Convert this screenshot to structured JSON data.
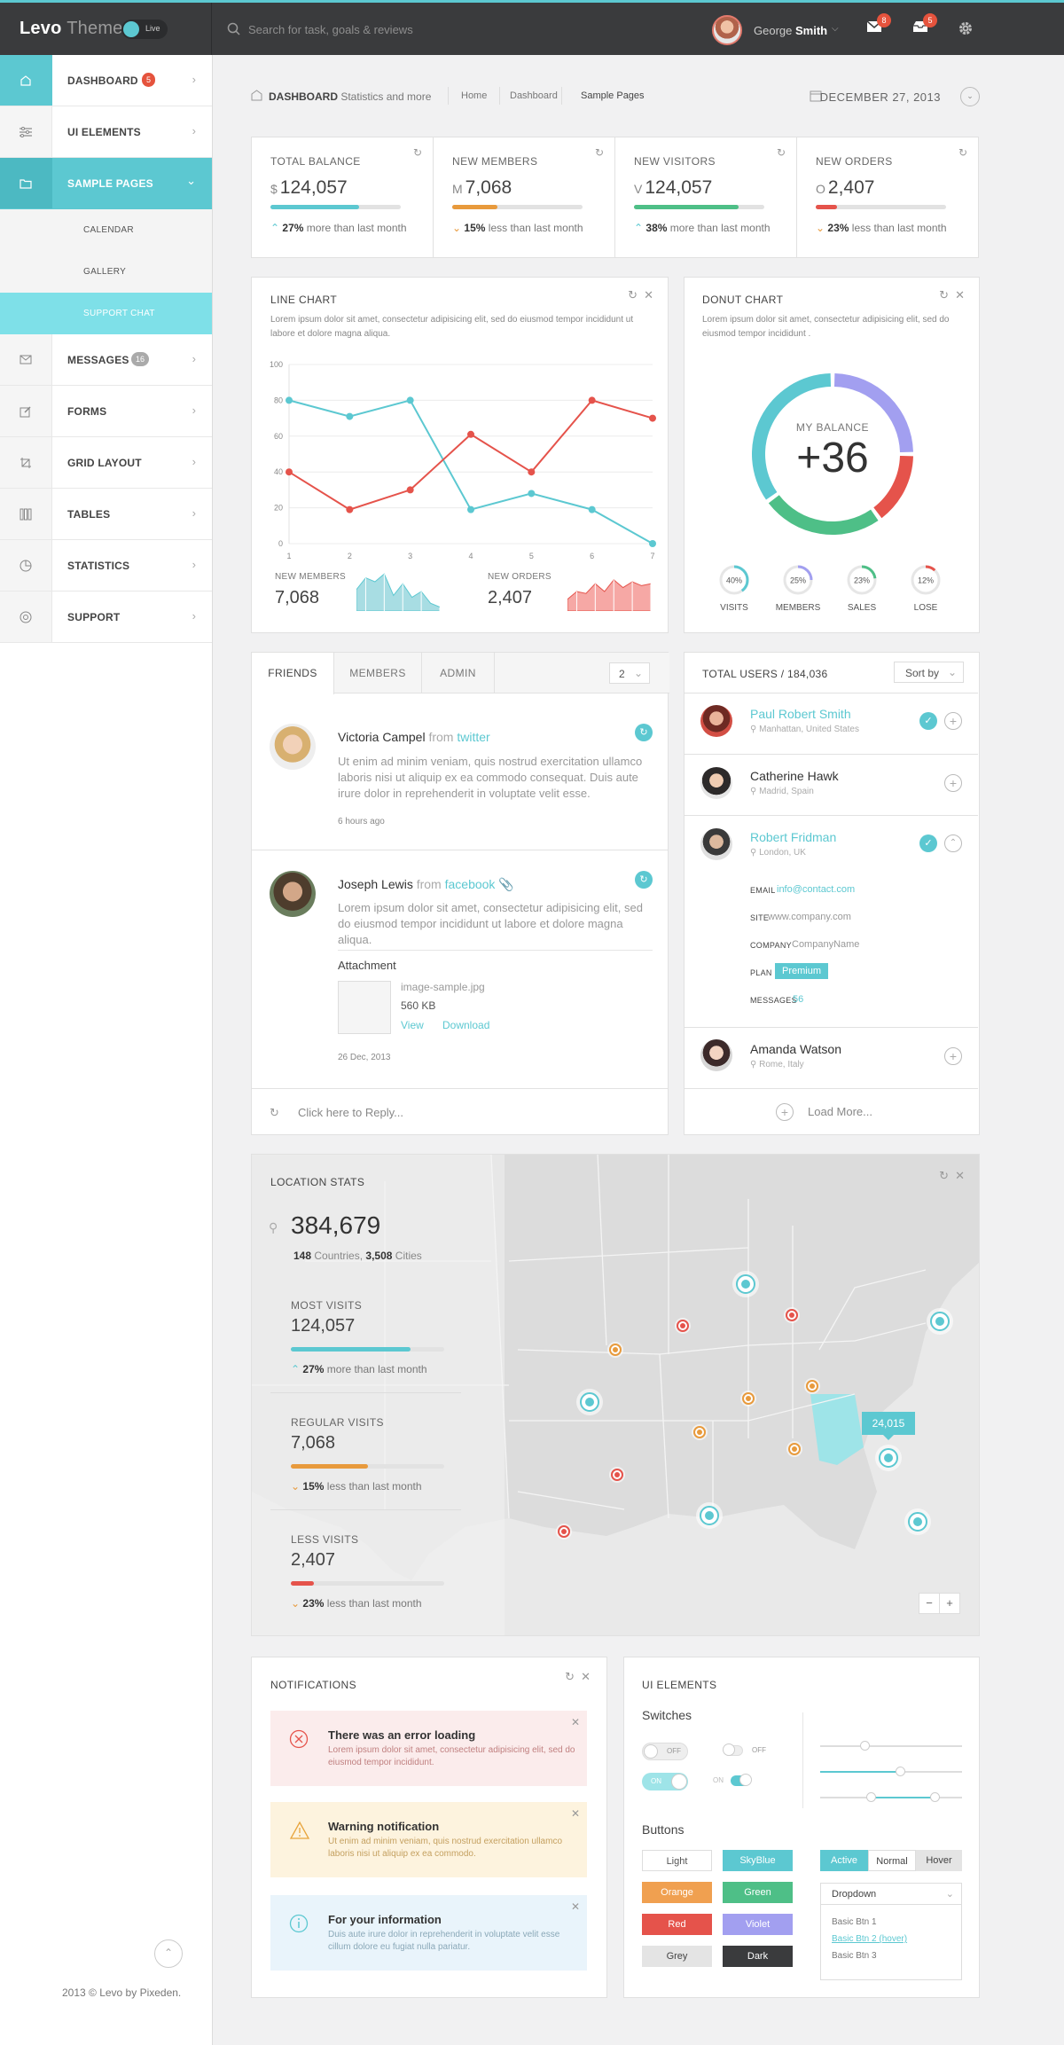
{
  "topbar": {
    "brand_bold": "Levo",
    "brand_thin": "Theme",
    "live": "Live",
    "search_placeholder": "Search for task, goals & reviews",
    "user_first": "George",
    "user_last": "Smith",
    "mail_count": "8",
    "inbox_count": "5"
  },
  "sidebar": {
    "items": [
      {
        "label": "DASHBOARD",
        "badge": "5"
      },
      {
        "label": "UI ELEMENTS"
      },
      {
        "label": "SAMPLE PAGES"
      },
      {
        "label": "MESSAGES",
        "badge": "16"
      },
      {
        "label": "FORMS"
      },
      {
        "label": "GRID LAYOUT"
      },
      {
        "label": "TABLES"
      },
      {
        "label": "STATISTICS"
      },
      {
        "label": "SUPPORT"
      }
    ],
    "subitems": [
      "CALENDAR",
      "GALLERY",
      "SUPPORT CHAT"
    ],
    "copyright": "2013 © Levo by Pixeden."
  },
  "breadcrumb": {
    "title": "DASHBOARD",
    "subtitle": "Statistics and more",
    "links": [
      "Home",
      "Dashboard",
      "Sample Pages"
    ],
    "date": "DECEMBER 27, 2013"
  },
  "stats": [
    {
      "label": "TOTAL BALANCE",
      "currency": "$",
      "value": "124,057",
      "progress": 0.68,
      "color": "#5cc8d1",
      "change": "27%",
      "change_text": "more than last month",
      "dir": "up"
    },
    {
      "label": "NEW MEMBERS",
      "currency": "M",
      "value": "7,068",
      "progress": 0.35,
      "color": "#e89a3c",
      "change": "15%",
      "change_text": "less than last month",
      "dir": "down"
    },
    {
      "label": "NEW VISITORS",
      "currency": "V",
      "value": "124,057",
      "progress": 0.8,
      "color": "#4ebf87",
      "change": "38%",
      "change_text": "more than last month",
      "dir": "up"
    },
    {
      "label": "NEW ORDERS",
      "currency": "O",
      "value": "2,407",
      "progress": 0.16,
      "color": "#e5534b",
      "change": "23%",
      "change_text": "less than last month",
      "dir": "down"
    }
  ],
  "line_chart": {
    "title": "LINE CHART",
    "desc": "Lorem ipsum dolor sit amet, consectetur adipisicing elit, sed do eiusmod tempor incididunt ut labore et dolore magna aliqua.",
    "new_members_label": "NEW MEMBERS",
    "new_members_value": "7,068",
    "new_orders_label": "NEW ORDERS",
    "new_orders_value": "2,407"
  },
  "chart_data": {
    "type": "line",
    "x": [
      1,
      2,
      3,
      4,
      5,
      6,
      7
    ],
    "ylim": [
      0,
      100
    ],
    "yticks": [
      0,
      20,
      40,
      60,
      80,
      100
    ],
    "series": [
      {
        "color": "#5cc8d1",
        "values": [
          80,
          71,
          80,
          19,
          28,
          19,
          0
        ]
      },
      {
        "color": "#e5534b",
        "values": [
          40,
          19,
          30,
          61,
          40,
          80,
          70
        ]
      }
    ]
  },
  "sparks": {
    "members": [
      0.55,
      0.85,
      0.75,
      0.95,
      0.4,
      0.7,
      0.35,
      0.5,
      0.2,
      0.1
    ],
    "orders": [
      0.3,
      0.5,
      0.45,
      0.7,
      0.5,
      0.8,
      0.6,
      0.75,
      0.65,
      0.7
    ]
  },
  "donut": {
    "title": "DONUT CHART",
    "desc": "Lorem ipsum dolor sit amet, consectetur adipisicing elit, sed do eiusmod tempor incididunt .",
    "center_label": "MY BALANCE",
    "center_value": "+36",
    "segments": [
      {
        "value": 25,
        "color": "#a29ff0"
      },
      {
        "value": 15,
        "color": "#e5534b"
      },
      {
        "value": 25,
        "color": "#4ebf87"
      },
      {
        "value": 35,
        "color": "#5cc8d1"
      }
    ],
    "minis": [
      {
        "pct": 40,
        "label": "VISITS",
        "color": "#5cc8d1"
      },
      {
        "pct": 25,
        "label": "MEMBERS",
        "color": "#a29ff0"
      },
      {
        "pct": 23,
        "label": "SALES",
        "color": "#4ebf87"
      },
      {
        "pct": 12,
        "label": "LOSE",
        "color": "#e5534b"
      }
    ]
  },
  "feed": {
    "tabs": [
      "FRIENDS",
      "MEMBERS",
      "ADMIN"
    ],
    "select": "2",
    "posts": [
      {
        "name": "Victoria Campel",
        "from": "from",
        "source": "twitter",
        "text": "Ut enim ad minim veniam, quis nostrud exercitation ullamco laboris nisi ut aliquip ex ea commodo consequat. Duis aute irure dolor in reprehenderit in voluptate velit esse.",
        "time": "6 hours ago"
      },
      {
        "name": "Joseph Lewis",
        "from": "from",
        "source": "facebook",
        "text": "Lorem ipsum dolor sit amet, consectetur adipisicing elit, sed do eiusmod tempor incididunt ut labore et dolore magna aliqua.",
        "attachment_title": "Attachment",
        "file": "image-sample.jpg",
        "size": "560 KB",
        "view": "View",
        "download": "Download",
        "time": "26 Dec, 2013"
      }
    ],
    "reply": "Click here to Reply..."
  },
  "users": {
    "title": "TOTAL USERS",
    "count": "184,036",
    "sort": "Sort by",
    "list": [
      {
        "name": "Paul Robert Smith",
        "loc": "Manhattan, United States"
      },
      {
        "name": "Catherine Hawk",
        "loc": "Madrid, Spain"
      },
      {
        "name": "Robert Fridman",
        "loc": "London, UK"
      },
      {
        "name": "Amanda Watson",
        "loc": "Rome, Italy"
      }
    ],
    "details": {
      "email_k": "EMAIL",
      "email": "info@contact.com",
      "site_k": "SITE",
      "site": "www.company.com",
      "company_k": "COMPANY",
      "company": "CompanyName",
      "plan_k": "PLAN",
      "plan": "Premium",
      "messages_k": "MESSAGES",
      "messages": "56"
    },
    "load_more": "Load More..."
  },
  "location": {
    "title": "LOCATION STATS",
    "total": "384,679",
    "countries": "148",
    "countries_label": "Countries,",
    "cities": "3,508",
    "cities_label": "Cities",
    "blocks": [
      {
        "label": "MOST VISITS",
        "value": "124,057",
        "progress": 0.78,
        "color": "#5cc8d1",
        "change": "27%",
        "text": "more than last month",
        "dir": "up"
      },
      {
        "label": "REGULAR VISITS",
        "value": "7,068",
        "progress": 0.5,
        "color": "#e89a3c",
        "change": "15%",
        "text": "less than last month",
        "dir": "down"
      },
      {
        "label": "LESS VISITS",
        "value": "2,407",
        "progress": 0.15,
        "color": "#e5534b",
        "change": "23%",
        "text": "less than last month",
        "dir": "down"
      }
    ],
    "tooltip": "24,015"
  },
  "notifications": {
    "title": "NOTIFICATIONS",
    "items": [
      {
        "title": "There was an error loading",
        "text": "Lorem ipsum dolor sit amet, consectetur adipisicing elit, sed do eiusmod tempor incididunt."
      },
      {
        "title": "Warning notification",
        "text": "Ut enim ad minim veniam, quis nostrud exercitation ullamco laboris nisi ut aliquip ex ea commodo."
      },
      {
        "title": "For your information",
        "text": "Duis aute irure dolor in reprehenderit in voluptate velit esse cillum dolore eu fugiat nulla pariatur."
      }
    ]
  },
  "ui": {
    "title": "UI ELEMENTS",
    "switches": "Switches",
    "off": "OFF",
    "on": "ON",
    "buttons": "Buttons",
    "btns": [
      "Light",
      "SkyBlue",
      "Orange",
      "Green",
      "Red",
      "Violet",
      "Grey",
      "Dark"
    ],
    "group": [
      "Active",
      "Normal",
      "Hover"
    ],
    "dropdown": "Dropdown",
    "options": [
      "Basic Btn 1",
      "Basic Btn 2 (hover)",
      "Basic Btn 3"
    ]
  }
}
